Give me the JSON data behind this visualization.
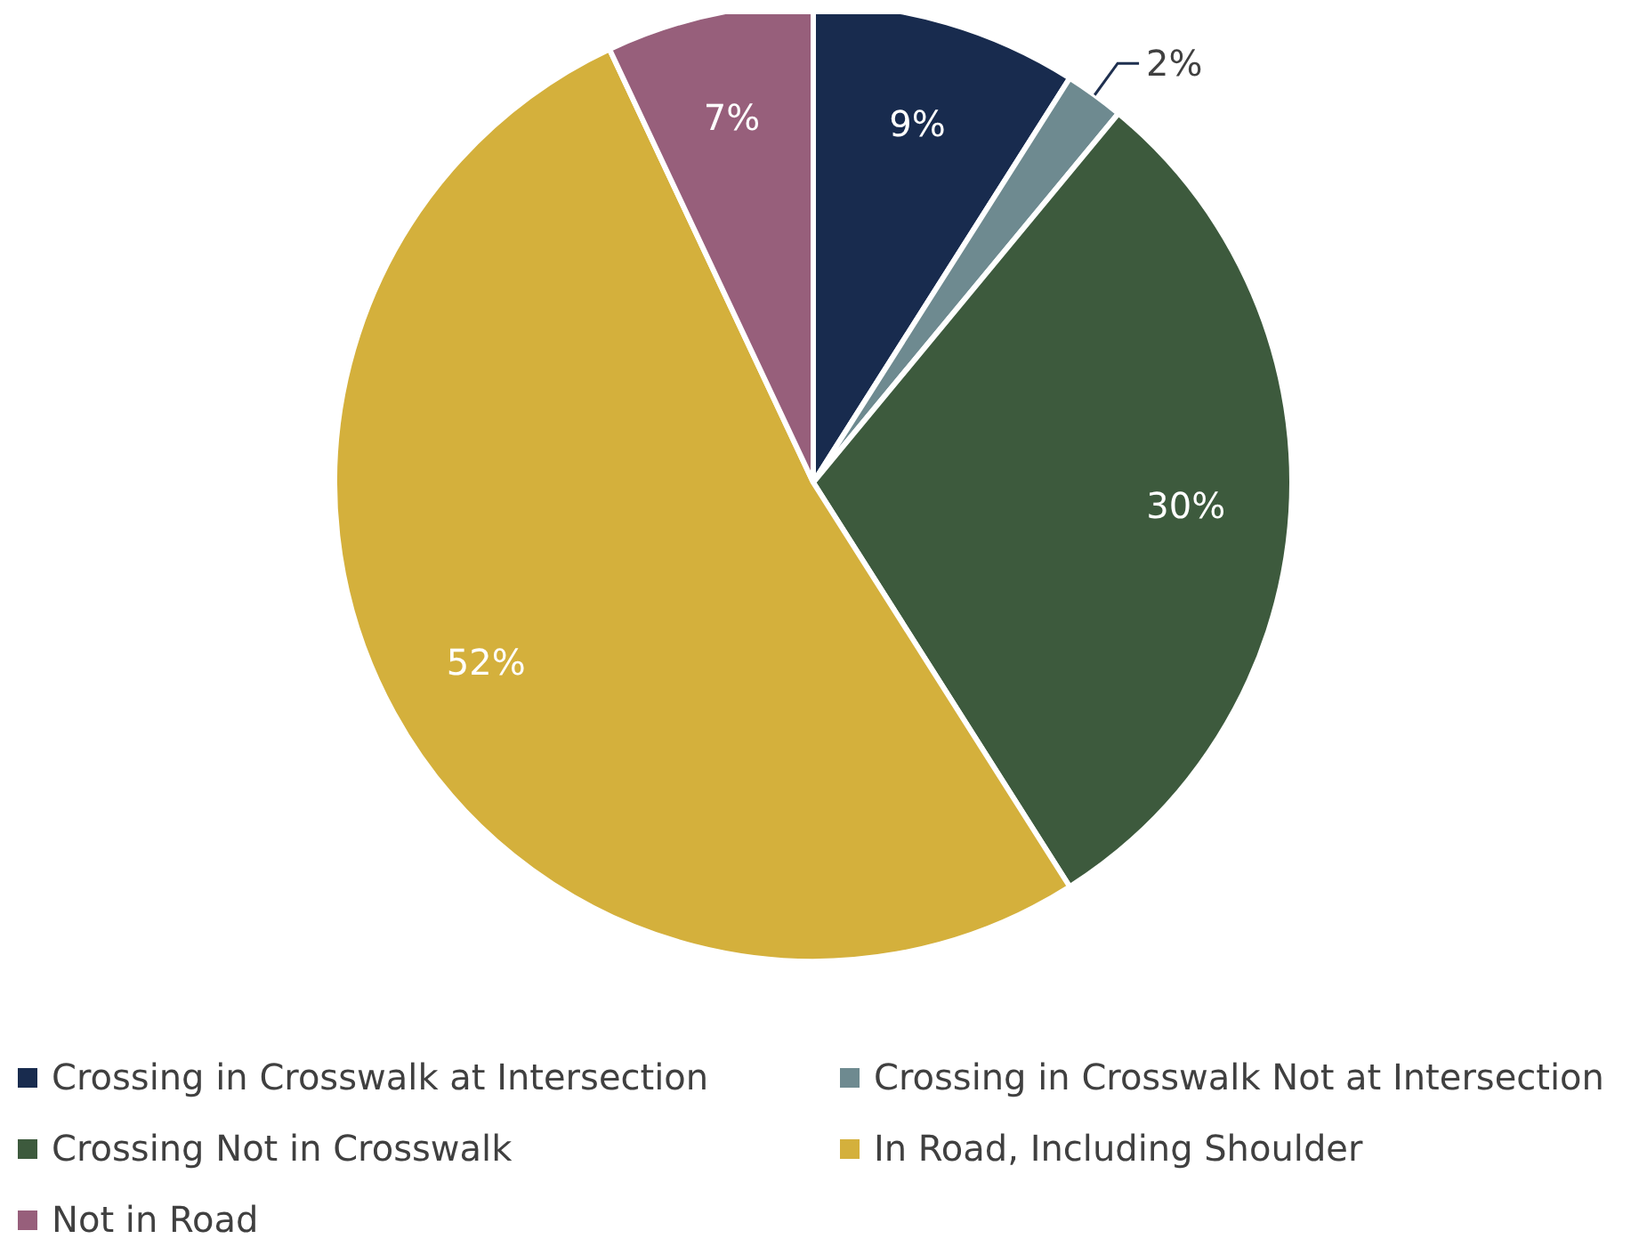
{
  "chart_data": {
    "type": "pie",
    "categories": [
      "Crossing in Crosswalk at Intersection",
      "Crossing in Crosswalk Not at Intersection",
      "Crossing Not in Crosswalk",
      "In Road, Including Shoulder",
      "Not in Road"
    ],
    "values": [
      9,
      2,
      30,
      52,
      7
    ],
    "colors": [
      "#182b4e",
      "#6e8a90",
      "#3d5a3d",
      "#d4b03c",
      "#975f7b"
    ],
    "value_labels": [
      "9%",
      "2%",
      "30%",
      "52%",
      "7%"
    ],
    "legend": "bottom"
  }
}
